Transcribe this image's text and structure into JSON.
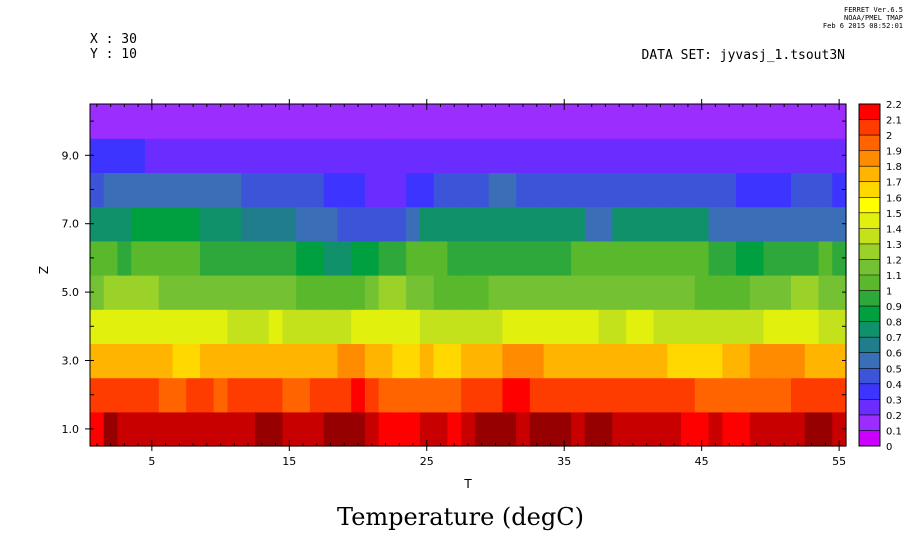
{
  "header": {
    "ferret_lines": [
      "FERRET  Ver.6.5",
      "NOAA/PMEL TMAP",
      "Feb  6 2015 08:52:01"
    ],
    "x_line": "X : 30",
    "y_line": "Y : 10",
    "dataset": "DATA SET: jyvasj_1.tsout3N"
  },
  "chart_data": {
    "type": "heatmap",
    "title": "Temperature (degC)",
    "xlabel": "T",
    "ylabel": "Z",
    "xlim": [
      0.5,
      55.5
    ],
    "ylim": [
      0.5,
      10.5
    ],
    "xticks": [
      5,
      15,
      25,
      35,
      45,
      55
    ],
    "yticks": [
      1.0,
      3.0,
      5.0,
      7.0,
      9.0
    ],
    "xtick_labels": [
      "5",
      "15",
      "25",
      "35",
      "45",
      "55"
    ],
    "ytick_labels": [
      "1.0",
      "3.0",
      "5.0",
      "7.0",
      "9.0"
    ],
    "colorbar": {
      "levels": [
        0,
        0.1,
        0.2,
        0.3,
        0.4,
        0.5,
        0.6,
        0.7,
        0.8,
        0.9,
        1,
        1.1,
        1.2,
        1.3,
        1.4,
        1.5,
        1.6,
        1.7,
        1.8,
        1.9,
        2,
        2.1,
        2.2
      ],
      "labels": [
        "0",
        "0.1",
        "0.2",
        "0.3",
        "0.4",
        "0.5",
        "0.6",
        "0.7",
        "0.8",
        "0.9",
        "1",
        "1.1",
        "1.2",
        "1.3",
        "1.4",
        "1.5",
        "1.6",
        "1.7",
        "1.8",
        "1.9",
        "2",
        "2.1",
        "2.2"
      ],
      "colors": [
        "#cc00ff",
        "#9b2eff",
        "#6b2dff",
        "#3d34ff",
        "#3c55d8",
        "#3a6fb8",
        "#1f7d8c",
        "#10916a",
        "#00a040",
        "#2ea83a",
        "#5ab82c",
        "#74c233",
        "#9ad22a",
        "#c3e21c",
        "#e1f00c",
        "#ffff00",
        "#ffd800",
        "#ffb400",
        "#ff8c00",
        "#ff6400",
        "#ff3c00",
        "#ff0000",
        "#c80000",
        "#960000"
      ]
    },
    "z_rows": [
      [
        2.0,
        2.2,
        2.1,
        2.1,
        2.1,
        2.1,
        2.1,
        2.1,
        2.1,
        2.1,
        2.1,
        2.1,
        2.2,
        2.2,
        2.1,
        2.1,
        2.1,
        2.2,
        2.2,
        2.2,
        2.1,
        2.0,
        2.0,
        2.0,
        2.1,
        2.1,
        2.0,
        2.1,
        2.2,
        2.2,
        2.2,
        2.1,
        2.2,
        2.2,
        2.2,
        2.1,
        2.2,
        2.2,
        2.1,
        2.1,
        2.1,
        2.1,
        2.1,
        2.0,
        2.0,
        2.1,
        2.0,
        2.0,
        2.1,
        2.1,
        2.1,
        2.1,
        2.2,
        2.2,
        2.1
      ],
      [
        1.9,
        1.9,
        1.9,
        1.9,
        1.9,
        1.8,
        1.8,
        1.9,
        1.9,
        1.8,
        1.9,
        1.9,
        1.9,
        1.9,
        1.8,
        1.8,
        1.9,
        1.9,
        1.9,
        2.0,
        1.9,
        1.8,
        1.8,
        1.8,
        1.8,
        1.8,
        1.8,
        1.9,
        1.9,
        1.9,
        2.0,
        2.0,
        1.9,
        1.9,
        1.9,
        1.9,
        1.9,
        1.9,
        1.9,
        1.9,
        1.9,
        1.9,
        1.9,
        1.9,
        1.8,
        1.8,
        1.8,
        1.8,
        1.8,
        1.8,
        1.8,
        1.9,
        1.9,
        1.9,
        1.9
      ],
      [
        1.6,
        1.6,
        1.6,
        1.6,
        1.6,
        1.6,
        1.5,
        1.5,
        1.6,
        1.6,
        1.6,
        1.6,
        1.6,
        1.6,
        1.6,
        1.6,
        1.6,
        1.6,
        1.7,
        1.7,
        1.6,
        1.6,
        1.5,
        1.5,
        1.6,
        1.5,
        1.5,
        1.6,
        1.6,
        1.6,
        1.7,
        1.7,
        1.7,
        1.6,
        1.6,
        1.6,
        1.6,
        1.6,
        1.6,
        1.6,
        1.6,
        1.6,
        1.5,
        1.5,
        1.5,
        1.5,
        1.6,
        1.6,
        1.7,
        1.7,
        1.7,
        1.7,
        1.6,
        1.6,
        1.6
      ],
      [
        1.3,
        1.3,
        1.3,
        1.3,
        1.3,
        1.3,
        1.3,
        1.3,
        1.3,
        1.3,
        1.2,
        1.2,
        1.2,
        1.3,
        1.2,
        1.2,
        1.2,
        1.2,
        1.2,
        1.3,
        1.3,
        1.3,
        1.3,
        1.3,
        1.2,
        1.2,
        1.2,
        1.2,
        1.2,
        1.2,
        1.3,
        1.3,
        1.3,
        1.3,
        1.3,
        1.3,
        1.3,
        1.2,
        1.2,
        1.3,
        1.3,
        1.2,
        1.2,
        1.2,
        1.2,
        1.2,
        1.2,
        1.2,
        1.2,
        1.3,
        1.3,
        1.3,
        1.3,
        1.2,
        1.2
      ],
      [
        1.0,
        1.1,
        1.1,
        1.1,
        1.1,
        1.0,
        1.0,
        1.0,
        1.0,
        1.0,
        1.0,
        1.0,
        1.0,
        1.0,
        1.0,
        0.9,
        0.9,
        0.9,
        0.9,
        0.9,
        1.0,
        1.1,
        1.1,
        1.0,
        1.0,
        0.9,
        0.9,
        0.9,
        0.9,
        1.0,
        1.0,
        1.0,
        1.0,
        1.0,
        1.0,
        1.0,
        1.0,
        1.0,
        1.0,
        1.0,
        1.0,
        1.0,
        1.0,
        1.0,
        0.9,
        0.9,
        0.9,
        0.9,
        1.0,
        1.0,
        1.0,
        1.1,
        1.1,
        1.0,
        1.0
      ],
      [
        0.9,
        0.9,
        0.8,
        0.9,
        0.9,
        0.9,
        0.9,
        0.9,
        0.8,
        0.8,
        0.8,
        0.8,
        0.8,
        0.8,
        0.8,
        0.7,
        0.7,
        0.6,
        0.6,
        0.7,
        0.7,
        0.8,
        0.8,
        0.9,
        0.9,
        0.9,
        0.8,
        0.8,
        0.8,
        0.8,
        0.8,
        0.8,
        0.8,
        0.8,
        0.8,
        0.9,
        0.9,
        0.9,
        0.9,
        0.9,
        0.9,
        0.9,
        0.9,
        0.9,
        0.9,
        0.8,
        0.8,
        0.7,
        0.7,
        0.8,
        0.8,
        0.8,
        0.8,
        0.9,
        0.8
      ],
      [
        0.6,
        0.6,
        0.6,
        0.7,
        0.7,
        0.7,
        0.7,
        0.7,
        0.6,
        0.6,
        0.6,
        0.5,
        0.5,
        0.5,
        0.5,
        0.4,
        0.4,
        0.4,
        0.3,
        0.3,
        0.3,
        0.3,
        0.3,
        0.4,
        0.6,
        0.6,
        0.6,
        0.6,
        0.6,
        0.6,
        0.6,
        0.6,
        0.6,
        0.6,
        0.6,
        0.6,
        0.4,
        0.4,
        0.6,
        0.6,
        0.6,
        0.6,
        0.6,
        0.6,
        0.6,
        0.4,
        0.4,
        0.4,
        0.4,
        0.4,
        0.4,
        0.4,
        0.4,
        0.4,
        0.4
      ],
      [
        0.3,
        0.4,
        0.4,
        0.4,
        0.4,
        0.4,
        0.4,
        0.4,
        0.4,
        0.4,
        0.4,
        0.3,
        0.3,
        0.3,
        0.3,
        0.3,
        0.3,
        0.2,
        0.2,
        0.2,
        0.1,
        0.1,
        0.1,
        0.2,
        0.2,
        0.3,
        0.3,
        0.3,
        0.3,
        0.4,
        0.4,
        0.3,
        0.3,
        0.3,
        0.3,
        0.3,
        0.3,
        0.3,
        0.3,
        0.3,
        0.3,
        0.3,
        0.3,
        0.3,
        0.3,
        0.3,
        0.3,
        0.2,
        0.2,
        0.2,
        0.2,
        0.3,
        0.3,
        0.3,
        0.2
      ],
      [
        0.2,
        0.2,
        0.2,
        0.2,
        0.1,
        0.1,
        0.1,
        0.1,
        0.1,
        0.1,
        0.1,
        0.1,
        0.1,
        0.1,
        0.1,
        0.1,
        0.1,
        0.1,
        0.1,
        0.1,
        0.1,
        0.1,
        0.1,
        0.1,
        0.1,
        0.1,
        0.1,
        0.1,
        0.1,
        0.1,
        0.1,
        0.1,
        0.1,
        0.1,
        0.1,
        0.1,
        0.1,
        0.1,
        0.1,
        0.1,
        0.1,
        0.1,
        0.1,
        0.1,
        0.1,
        0.1,
        0.1,
        0.1,
        0.1,
        0.1,
        0.1,
        0.1,
        0.1,
        0.1,
        0.1
      ],
      [
        0.05,
        0.05,
        0.05,
        0.05,
        0.05,
        0.05,
        0.05,
        0.05,
        0.05,
        0.05,
        0.05,
        0.05,
        0.05,
        0.05,
        0.05,
        0.05,
        0.05,
        0.05,
        0.05,
        0.05,
        0.05,
        0.05,
        0.05,
        0.05,
        0.05,
        0.05,
        0.05,
        0.05,
        0.05,
        0.05,
        0.05,
        0.05,
        0.05,
        0.05,
        0.05,
        0.05,
        0.05,
        0.05,
        0.05,
        0.05,
        0.05,
        0.05,
        0.05,
        0.05,
        0.05,
        0.05,
        0.05,
        0.05,
        0.05,
        0.05,
        0.05,
        0.05,
        0.05,
        0.05,
        0.05
      ]
    ],
    "z_row_y": [
      1,
      2,
      3,
      4,
      5,
      6,
      7,
      8,
      9,
      10
    ],
    "x_values_start": 1,
    "x_values_step": 1
  }
}
